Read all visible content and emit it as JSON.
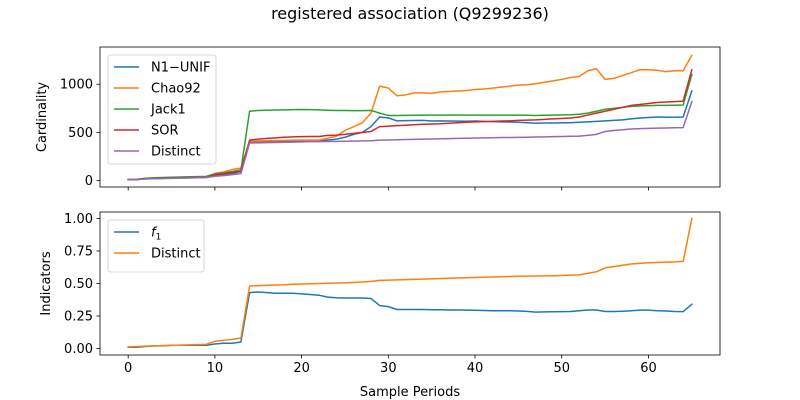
{
  "figure": {
    "title": "registered association (Q9299236)"
  },
  "chart_data": [
    {
      "type": "line",
      "ylabel": "Cardinality",
      "xlabel": "",
      "xlim": [
        -3.25,
        68.25
      ],
      "ylim": [
        -66,
        1386
      ],
      "yticks": [
        0,
        500,
        1000
      ],
      "xticks": [
        0,
        10,
        20,
        30,
        40,
        50,
        60
      ],
      "show_xtick_labels": false,
      "legend_position": "upper-left",
      "series": [
        {
          "name": "N1−UNIF",
          "color": "#1f77b4",
          "x": [
            0,
            1,
            2,
            3,
            4,
            5,
            6,
            7,
            8,
            9,
            10,
            11,
            12,
            13,
            14,
            15,
            16,
            17,
            18,
            19,
            20,
            21,
            22,
            23,
            24,
            25,
            26,
            27,
            28,
            29,
            30,
            31,
            32,
            33,
            34,
            35,
            36,
            37,
            38,
            39,
            40,
            41,
            42,
            43,
            44,
            45,
            46,
            47,
            48,
            49,
            50,
            51,
            52,
            53,
            54,
            55,
            56,
            57,
            58,
            59,
            60,
            61,
            62,
            63,
            64,
            65
          ],
          "y": [
            10,
            12,
            20,
            23,
            25,
            28,
            30,
            32,
            33,
            34,
            55,
            62,
            72,
            95,
            400,
            402,
            404,
            405,
            406,
            408,
            410,
            411,
            412,
            420,
            430,
            450,
            480,
            500,
            560,
            660,
            650,
            620,
            622,
            624,
            625,
            618,
            620,
            618,
            617,
            616,
            618,
            615,
            612,
            610,
            608,
            605,
            600,
            595,
            598,
            598,
            600,
            600,
            605,
            610,
            615,
            620,
            625,
            630,
            640,
            650,
            655,
            660,
            658,
            657,
            660,
            930
          ]
        },
        {
          "name": "Chao92",
          "color": "#ff7f0e",
          "x": [
            0,
            1,
            2,
            3,
            4,
            5,
            6,
            7,
            8,
            9,
            10,
            11,
            12,
            13,
            14,
            15,
            16,
            17,
            18,
            19,
            20,
            21,
            22,
            23,
            24,
            25,
            26,
            27,
            28,
            29,
            30,
            31,
            32,
            33,
            34,
            35,
            36,
            37,
            38,
            39,
            40,
            41,
            42,
            43,
            44,
            45,
            46,
            47,
            48,
            49,
            50,
            51,
            52,
            53,
            54,
            55,
            56,
            57,
            58,
            59,
            60,
            61,
            62,
            63,
            64,
            65
          ],
          "y": [
            10,
            12,
            20,
            23,
            25,
            28,
            30,
            32,
            33,
            34,
            75,
            90,
            115,
            130,
            410,
            412,
            414,
            416,
            418,
            420,
            420,
            420,
            420,
            440,
            460,
            520,
            560,
            600,
            700,
            980,
            960,
            880,
            890,
            910,
            910,
            905,
            920,
            925,
            930,
            935,
            945,
            950,
            960,
            970,
            980,
            990,
            995,
            1005,
            1020,
            1035,
            1050,
            1070,
            1080,
            1140,
            1160,
            1050,
            1060,
            1090,
            1120,
            1150,
            1150,
            1145,
            1130,
            1140,
            1140,
            1300
          ]
        },
        {
          "name": "Jack1",
          "color": "#2ca02c",
          "x": [
            0,
            1,
            2,
            3,
            4,
            5,
            6,
            7,
            8,
            9,
            10,
            11,
            12,
            13,
            14,
            15,
            16,
            17,
            18,
            19,
            20,
            21,
            22,
            23,
            24,
            25,
            26,
            27,
            28,
            29,
            30,
            31,
            32,
            33,
            34,
            35,
            36,
            37,
            38,
            39,
            40,
            41,
            42,
            43,
            44,
            45,
            46,
            47,
            48,
            49,
            50,
            51,
            52,
            53,
            54,
            55,
            56,
            57,
            58,
            59,
            60,
            61,
            62,
            63,
            64,
            65
          ],
          "y": [
            10,
            15,
            25,
            30,
            32,
            35,
            38,
            40,
            42,
            44,
            70,
            80,
            95,
            110,
            720,
            728,
            730,
            732,
            734,
            736,
            738,
            736,
            734,
            730,
            728,
            728,
            726,
            726,
            728,
            700,
            676,
            676,
            677,
            678,
            679,
            680,
            680,
            680,
            681,
            680,
            680,
            680,
            680,
            680,
            680,
            680,
            678,
            675,
            678,
            680,
            682,
            684,
            688,
            700,
            720,
            740,
            750,
            760,
            770,
            775,
            778,
            780,
            780,
            782,
            785,
            1100
          ]
        },
        {
          "name": "SOR",
          "color": "#d62728",
          "x": [
            0,
            1,
            2,
            3,
            4,
            5,
            6,
            7,
            8,
            9,
            10,
            11,
            12,
            13,
            14,
            15,
            16,
            17,
            18,
            19,
            20,
            21,
            22,
            23,
            24,
            25,
            26,
            27,
            28,
            29,
            30,
            31,
            32,
            33,
            34,
            35,
            36,
            37,
            38,
            39,
            40,
            41,
            42,
            43,
            44,
            45,
            46,
            47,
            48,
            49,
            50,
            51,
            52,
            53,
            54,
            55,
            56,
            57,
            58,
            59,
            60,
            61,
            62,
            63,
            64,
            65
          ],
          "y": [
            10,
            12,
            18,
            22,
            24,
            26,
            28,
            30,
            32,
            34,
            60,
            70,
            85,
            95,
            420,
            430,
            438,
            444,
            450,
            454,
            456,
            458,
            458,
            470,
            472,
            480,
            490,
            500,
            510,
            560,
            565,
            570,
            575,
            580,
            585,
            588,
            590,
            595,
            600,
            605,
            610,
            612,
            615,
            618,
            620,
            625,
            628,
            630,
            635,
            640,
            645,
            650,
            660,
            680,
            700,
            720,
            740,
            760,
            780,
            790,
            800,
            810,
            815,
            820,
            825,
            1150
          ]
        },
        {
          "name": "Distinct",
          "color": "#9467bd",
          "x": [
            0,
            1,
            2,
            3,
            4,
            5,
            6,
            7,
            8,
            9,
            10,
            11,
            12,
            13,
            14,
            15,
            16,
            17,
            18,
            19,
            20,
            21,
            22,
            23,
            24,
            25,
            26,
            27,
            28,
            29,
            30,
            31,
            32,
            33,
            34,
            35,
            36,
            37,
            38,
            39,
            40,
            41,
            42,
            43,
            44,
            45,
            46,
            47,
            48,
            49,
            50,
            51,
            52,
            53,
            54,
            55,
            56,
            57,
            58,
            59,
            60,
            61,
            62,
            63,
            64,
            65
          ],
          "y": [
            10,
            12,
            18,
            20,
            22,
            24,
            26,
            28,
            30,
            32,
            45,
            52,
            62,
            72,
            390,
            392,
            394,
            396,
            398,
            400,
            402,
            404,
            405,
            406,
            407,
            408,
            410,
            412,
            414,
            420,
            422,
            424,
            426,
            428,
            430,
            432,
            434,
            436,
            438,
            440,
            442,
            444,
            445,
            447,
            448,
            449,
            450,
            452,
            454,
            456,
            458,
            460,
            462,
            470,
            480,
            510,
            520,
            528,
            535,
            540,
            542,
            545,
            546,
            548,
            550,
            820
          ]
        }
      ]
    },
    {
      "type": "line",
      "ylabel": "Indicators",
      "xlabel": "Sample Periods",
      "xlim": [
        -3.25,
        68.25
      ],
      "ylim": [
        -0.05,
        1.05
      ],
      "yticks": [
        0.0,
        0.25,
        0.5,
        0.75,
        1.0
      ],
      "ytick_labels": [
        "0.00",
        "0.25",
        "0.50",
        "0.75",
        "1.00"
      ],
      "xticks": [
        0,
        10,
        20,
        30,
        40,
        50,
        60
      ],
      "xtick_labels": [
        "0",
        "10",
        "20",
        "30",
        "40",
        "50",
        "60"
      ],
      "legend_position": "upper-left",
      "series": [
        {
          "name": "f1",
          "legend_main": "f",
          "legend_sub": "1",
          "color": "#1f77b4",
          "x": [
            0,
            1,
            2,
            3,
            4,
            5,
            6,
            7,
            8,
            9,
            10,
            11,
            12,
            13,
            14,
            15,
            16,
            17,
            18,
            19,
            20,
            21,
            22,
            23,
            24,
            25,
            26,
            27,
            28,
            29,
            30,
            31,
            32,
            33,
            34,
            35,
            36,
            37,
            38,
            39,
            40,
            41,
            42,
            43,
            44,
            45,
            46,
            47,
            48,
            49,
            50,
            51,
            52,
            53,
            54,
            55,
            56,
            57,
            58,
            59,
            60,
            61,
            62,
            63,
            64,
            65
          ],
          "y": [
            0.01,
            0.01,
            0.015,
            0.02,
            0.02,
            0.025,
            0.025,
            0.025,
            0.025,
            0.025,
            0.035,
            0.04,
            0.04,
            0.05,
            0.43,
            0.435,
            0.43,
            0.425,
            0.425,
            0.425,
            0.42,
            0.415,
            0.41,
            0.395,
            0.39,
            0.388,
            0.388,
            0.388,
            0.385,
            0.33,
            0.322,
            0.3,
            0.3,
            0.3,
            0.3,
            0.298,
            0.298,
            0.296,
            0.296,
            0.295,
            0.294,
            0.292,
            0.29,
            0.29,
            0.29,
            0.288,
            0.286,
            0.28,
            0.282,
            0.283,
            0.284,
            0.285,
            0.29,
            0.296,
            0.296,
            0.285,
            0.285,
            0.287,
            0.29,
            0.295,
            0.295,
            0.29,
            0.288,
            0.285,
            0.284,
            0.34
          ]
        },
        {
          "name": "Distinct",
          "legend_main": "Distinct",
          "legend_sub": "",
          "color": "#ff7f0e",
          "x": [
            0,
            1,
            2,
            3,
            4,
            5,
            6,
            7,
            8,
            9,
            10,
            11,
            12,
            13,
            14,
            15,
            16,
            17,
            18,
            19,
            20,
            21,
            22,
            23,
            24,
            25,
            26,
            27,
            28,
            29,
            30,
            31,
            32,
            33,
            34,
            35,
            36,
            37,
            38,
            39,
            40,
            41,
            42,
            43,
            44,
            45,
            46,
            47,
            48,
            49,
            50,
            51,
            52,
            53,
            54,
            55,
            56,
            57,
            58,
            59,
            60,
            61,
            62,
            63,
            64,
            65
          ],
          "y": [
            0.012,
            0.015,
            0.018,
            0.02,
            0.022,
            0.024,
            0.026,
            0.028,
            0.03,
            0.032,
            0.055,
            0.063,
            0.07,
            0.08,
            0.48,
            0.484,
            0.486,
            0.488,
            0.49,
            0.494,
            0.496,
            0.498,
            0.5,
            0.502,
            0.504,
            0.506,
            0.508,
            0.512,
            0.516,
            0.524,
            0.526,
            0.528,
            0.53,
            0.532,
            0.534,
            0.536,
            0.538,
            0.54,
            0.542,
            0.544,
            0.546,
            0.548,
            0.55,
            0.552,
            0.554,
            0.556,
            0.557,
            0.558,
            0.559,
            0.56,
            0.562,
            0.564,
            0.566,
            0.578,
            0.59,
            0.62,
            0.63,
            0.64,
            0.65,
            0.655,
            0.66,
            0.662,
            0.664,
            0.666,
            0.67,
            1.0
          ]
        }
      ]
    }
  ]
}
